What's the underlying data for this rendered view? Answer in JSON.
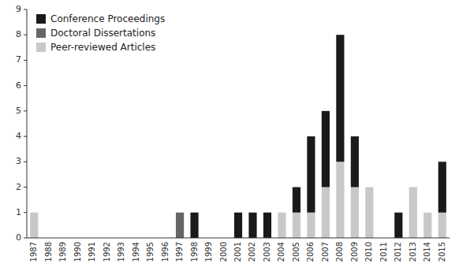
{
  "chart_data": {
    "type": "bar",
    "stacked": true,
    "legend": "upper left",
    "categories": [
      "1987",
      "1988",
      "1989",
      "1990",
      "1991",
      "1992",
      "1993",
      "1994",
      "1995",
      "1996",
      "1997",
      "1998",
      "1999",
      "2000",
      "2001",
      "2002",
      "2003",
      "2004",
      "2005",
      "2006",
      "2007",
      "2008",
      "2009",
      "2010",
      "2011",
      "2012",
      "2013",
      "2014",
      "2015"
    ],
    "series": [
      {
        "name": "Peer-reviewed Articles",
        "color": "#c8c8c8",
        "values": [
          1,
          0,
          0,
          0,
          0,
          0,
          0,
          0,
          0,
          0,
          0,
          0,
          0,
          0,
          0,
          0,
          0,
          1,
          1,
          1,
          2,
          3,
          2,
          2,
          0,
          0,
          2,
          1,
          1
        ]
      },
      {
        "name": "Doctoral Dissertations",
        "color": "#666666",
        "values": [
          0,
          0,
          0,
          0,
          0,
          0,
          0,
          0,
          0,
          0,
          1,
          0,
          0,
          0,
          0,
          0,
          0,
          0,
          0,
          0,
          0,
          0,
          0,
          0,
          0,
          0,
          0,
          0,
          0
        ]
      },
      {
        "name": "Conference Proceedings",
        "color": "#1a1a1a",
        "values": [
          0,
          0,
          0,
          0,
          0,
          0,
          0,
          0,
          0,
          0,
          0,
          1,
          0,
          0,
          1,
          1,
          1,
          0,
          1,
          3,
          3,
          5,
          2,
          0,
          0,
          1,
          0,
          0,
          2
        ]
      }
    ],
    "ylim": [
      0,
      9
    ],
    "yticks": [
      0,
      1,
      2,
      3,
      4,
      5,
      6,
      7,
      8,
      9
    ],
    "grid": false
  }
}
